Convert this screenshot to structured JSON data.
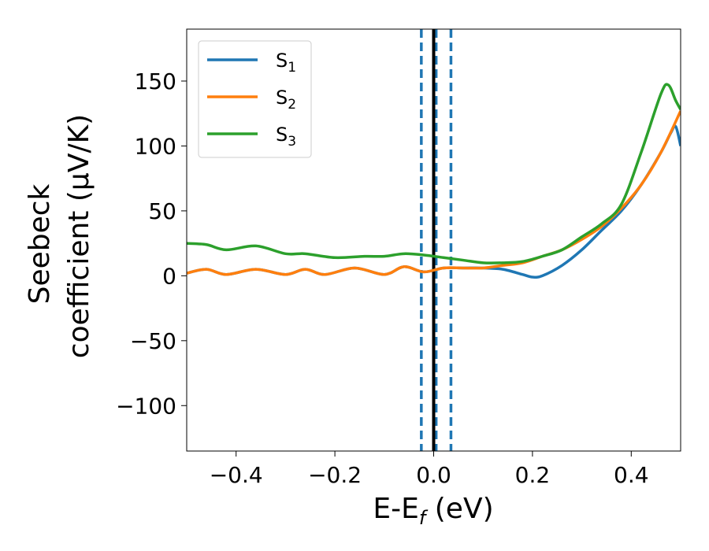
{
  "chart_data": {
    "type": "line",
    "xlabel": {
      "main": "E-E",
      "sub": "f",
      "unit": " (eV)"
    },
    "ylabel": {
      "line1": "Seebeck",
      "line2": "coefficient  (μV/K)"
    },
    "xlim": [
      -0.5,
      0.5
    ],
    "ylim": [
      -135,
      190
    ],
    "xticks": [
      -0.4,
      -0.2,
      0.0,
      0.2,
      0.4
    ],
    "xtick_labels": [
      "−0.4",
      "−0.2",
      "0.0",
      "0.2",
      "0.4"
    ],
    "yticks": [
      -100,
      -50,
      0,
      50,
      100,
      150
    ],
    "ytick_labels": [
      "−100",
      "−50",
      "0",
      "50",
      "100",
      "150"
    ],
    "legend_position": "top-left",
    "grid": false,
    "vertical_lines": [
      {
        "x": -0.025,
        "style": "dashed",
        "color": "#1f77b4"
      },
      {
        "x": 0.005,
        "style": "dashed",
        "color": "#1f77b4"
      },
      {
        "x": 0.035,
        "style": "dashed",
        "color": "#1f77b4"
      },
      {
        "x": 0.0,
        "style": "solid",
        "color": "#000000"
      }
    ],
    "series": [
      {
        "name": "S",
        "sub": "1",
        "color": "#1f77b4",
        "x": [
          -0.5,
          -0.46,
          -0.42,
          -0.36,
          -0.3,
          -0.26,
          -0.22,
          -0.16,
          -0.1,
          -0.06,
          -0.02,
          0.02,
          0.06,
          0.1,
          0.14,
          0.18,
          0.2,
          0.22,
          0.26,
          0.3,
          0.34,
          0.38,
          0.42,
          0.46,
          0.48,
          0.49,
          0.5
        ],
        "y": [
          2,
          5,
          1,
          5,
          1,
          5,
          1,
          6,
          1,
          7,
          3,
          6,
          6,
          6,
          5,
          1,
          -1,
          0,
          8,
          20,
          35,
          50,
          70,
          95,
          110,
          115,
          100
        ]
      },
      {
        "name": "S",
        "sub": "2",
        "color": "#ff7f0e",
        "x": [
          -0.5,
          -0.46,
          -0.42,
          -0.36,
          -0.3,
          -0.26,
          -0.22,
          -0.16,
          -0.1,
          -0.06,
          -0.02,
          0.02,
          0.06,
          0.1,
          0.14,
          0.18,
          0.22,
          0.26,
          0.3,
          0.34,
          0.38,
          0.42,
          0.46,
          0.5
        ],
        "y": [
          2,
          5,
          1,
          5,
          1,
          5,
          1,
          6,
          1,
          7,
          3,
          6,
          6,
          6,
          8,
          10,
          15,
          20,
          28,
          38,
          52,
          70,
          95,
          127
        ]
      },
      {
        "name": "S",
        "sub": "3",
        "color": "#2ca02c",
        "x": [
          -0.5,
          -0.46,
          -0.42,
          -0.36,
          -0.3,
          -0.26,
          -0.2,
          -0.14,
          -0.1,
          -0.06,
          -0.02,
          0.02,
          0.06,
          0.1,
          0.14,
          0.18,
          0.22,
          0.26,
          0.3,
          0.34,
          0.38,
          0.42,
          0.46,
          0.475,
          0.49,
          0.5
        ],
        "y": [
          25,
          24,
          20,
          23,
          17,
          17,
          14,
          15,
          15,
          17,
          16,
          14,
          12,
          10,
          10,
          11,
          15,
          20,
          30,
          40,
          55,
          95,
          140,
          147,
          135,
          128
        ]
      }
    ]
  }
}
